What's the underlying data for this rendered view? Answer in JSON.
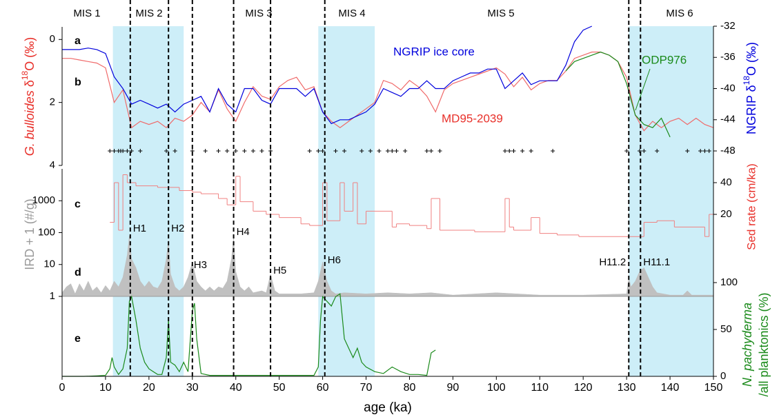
{
  "stages": [
    "MIS 1",
    "MIS 2",
    "MIS 3",
    "MIS 4",
    "MIS 5",
    "MIS 6"
  ],
  "shaded": [
    [
      11.7,
      28
    ],
    [
      59,
      72
    ],
    [
      130.5,
      150
    ]
  ],
  "events": [
    {
      "x": 15.7,
      "label": "H1"
    },
    {
      "x": 24.5,
      "label": "H2"
    },
    {
      "x": 30,
      "label": "H3"
    },
    {
      "x": 39.5,
      "label": "H4"
    },
    {
      "x": 48,
      "label": "H5"
    },
    {
      "x": 60.5,
      "label": "H6"
    },
    {
      "x": 130.5,
      "label": "H11.2"
    },
    {
      "x": 133.2,
      "label": "H11.1"
    }
  ],
  "chart_data": [
    {
      "type": "line",
      "panel_labels": [
        "a",
        "b"
      ],
      "xlim": [
        0,
        150
      ],
      "yaxis": "left",
      "yinvert": true,
      "ylim": [
        -0.4,
        4
      ],
      "yticks": [
        0,
        2,
        4
      ],
      "ylabel": [
        "G. bulloides",
        "δ",
        "18",
        "O (‰)"
      ],
      "y2lim": [
        -48,
        -32
      ],
      "y2ticks": [
        -32,
        -36,
        -40,
        -44,
        -48
      ],
      "y2label": [
        "NGRIP δ",
        "18",
        "O (‰)"
      ],
      "tie_points": [
        11,
        12,
        13,
        13.5,
        14,
        15,
        16,
        18,
        24,
        26,
        30,
        33,
        36,
        38,
        40,
        42,
        44,
        46,
        48,
        57,
        59,
        60,
        63,
        65,
        69,
        71,
        73,
        75,
        76,
        77,
        79,
        84,
        85,
        87,
        102,
        103,
        104,
        106,
        108,
        113,
        130,
        133,
        134,
        137,
        144,
        147,
        148,
        149
      ],
      "series": [
        {
          "name": "MD95-2039",
          "color": "#f06a6a",
          "x": [
            0,
            2,
            4,
            6,
            8,
            10,
            12,
            14,
            16,
            18,
            20,
            22,
            24,
            26,
            28,
            30,
            32,
            34,
            36,
            38,
            40,
            42,
            44,
            46,
            48,
            50,
            52,
            54,
            56,
            58,
            60,
            62,
            64,
            66,
            68,
            70,
            72,
            74,
            76,
            78,
            80,
            82,
            84,
            86,
            88,
            90,
            92,
            94,
            96,
            98,
            100,
            102,
            104,
            106,
            108,
            110,
            112,
            114,
            116,
            118,
            120,
            122,
            124,
            126,
            128,
            130,
            132,
            134,
            136,
            138,
            140,
            142,
            144,
            146,
            148,
            150
          ],
          "values": [
            0.6,
            0.6,
            0.65,
            0.7,
            0.75,
            0.9,
            2.0,
            1.6,
            2.8,
            2.6,
            2.7,
            2.6,
            2.8,
            2.5,
            2.6,
            2.4,
            2.0,
            2.3,
            1.6,
            2.2,
            2.6,
            2.0,
            1.5,
            1.8,
            1.9,
            1.5,
            1.3,
            1.2,
            1.6,
            1.5,
            2.3,
            2.6,
            2.8,
            2.6,
            2.4,
            2.2,
            2.0,
            1.3,
            1.4,
            1.6,
            1.3,
            1.5,
            1.8,
            2.3,
            1.6,
            1.4,
            1.3,
            1.2,
            1.1,
            1.0,
            0.9,
            1.1,
            1.5,
            1.2,
            1.6,
            1.4,
            1.3,
            1.3,
            1.0,
            0.6,
            0.5,
            0.4,
            0.4,
            0.5,
            0.7,
            1.2,
            2.4,
            2.9,
            2.6,
            2.8,
            2.6,
            2.5,
            2.7,
            2.5,
            2.7,
            2.8
          ]
        },
        {
          "name": "NGRIP ice core",
          "color": "#0000dd",
          "axis": "y2",
          "x": [
            0,
            2,
            4,
            6,
            8,
            10,
            12,
            14,
            16,
            18,
            20,
            22,
            24,
            26,
            28,
            30,
            32,
            34,
            36,
            38,
            40,
            42,
            44,
            46,
            48,
            50,
            52,
            54,
            56,
            58,
            60,
            62,
            64,
            66,
            68,
            70,
            72,
            74,
            76,
            78,
            80,
            82,
            84,
            86,
            88,
            90,
            92,
            94,
            96,
            98,
            100,
            102,
            104,
            106,
            108,
            110,
            112,
            114,
            116,
            118,
            120,
            122
          ],
          "values": [
            -35,
            -35,
            -35,
            -34.8,
            -35,
            -35.5,
            -38.5,
            -40,
            -42,
            -41.5,
            -42,
            -42.5,
            -42,
            -43,
            -42,
            -41.5,
            -41,
            -43,
            -40,
            -42,
            -43,
            -40,
            -40,
            -41.5,
            -42,
            -40,
            -40,
            -40,
            -41,
            -40,
            -43,
            -44.5,
            -44,
            -44,
            -43.5,
            -43,
            -42,
            -40,
            -40.5,
            -41,
            -40,
            -40,
            -39,
            -40,
            -40,
            -39,
            -38.5,
            -38,
            -38,
            -37.5,
            -37.5,
            -40,
            -39,
            -38,
            -39.5,
            -39,
            -39,
            -39,
            -37,
            -34,
            -32.5,
            -32
          ]
        },
        {
          "name": "ODP976",
          "color": "#1a8a1a",
          "x": [
            116,
            118,
            120,
            122,
            124,
            126,
            128,
            130,
            132,
            134,
            136,
            138,
            140
          ],
          "values": [
            1.0,
            0.7,
            0.6,
            0.5,
            0.4,
            0.5,
            0.7,
            1.4,
            2.4,
            2.7,
            2.8,
            2.5,
            3.1
          ]
        }
      ]
    },
    {
      "type": "step",
      "panel_labels": [
        "c"
      ],
      "xlim": [
        0,
        150
      ],
      "yaxis": "right",
      "ylim": [
        0,
        48
      ],
      "yticks": [
        20,
        40
      ],
      "ylabel": [
        "Sed rate (cm/ka)"
      ],
      "series": [
        {
          "color": "#f08080",
          "x": [
            11,
            12,
            13,
            14,
            15,
            17,
            22,
            27,
            30,
            32,
            36,
            38,
            40,
            41,
            44,
            47,
            50,
            55,
            57,
            60,
            61,
            64,
            65,
            67,
            68,
            70,
            76,
            77,
            80,
            84,
            85,
            87,
            95,
            102,
            103,
            104,
            108,
            110,
            114,
            119,
            134,
            137,
            141,
            148,
            149,
            150
          ],
          "values": [
            15,
            40,
            10,
            45,
            40,
            38,
            37,
            35,
            34,
            33,
            30,
            26,
            44,
            28,
            22,
            20,
            18,
            14,
            13,
            40,
            16,
            40,
            22,
            40,
            14,
            22,
            12,
            14,
            13,
            11,
            30,
            10,
            9,
            30,
            12,
            10,
            18,
            8,
            7,
            6,
            15,
            16,
            12,
            6,
            20,
            20
          ]
        }
      ]
    },
    {
      "type": "area",
      "panel_labels": [
        "d"
      ],
      "xlim": [
        0,
        150
      ],
      "yaxis": "left",
      "log": true,
      "ylim": [
        1,
        10000
      ],
      "yticks": [
        1,
        10,
        100,
        1000
      ],
      "ylabel": [
        "IRD + 1 (#/g)"
      ],
      "series": [
        {
          "color": "#c0c0c0",
          "x": [
            0,
            1,
            2,
            3,
            4,
            5,
            6,
            7,
            8,
            9,
            10,
            11,
            12,
            13,
            14,
            15,
            15.5,
            16,
            17,
            18,
            19,
            20,
            21,
            22,
            23,
            24,
            24.5,
            25,
            26,
            27,
            28,
            29,
            30,
            31,
            32,
            33,
            34,
            35,
            36,
            37,
            38,
            39,
            39.5,
            40,
            41,
            42,
            43,
            44,
            46,
            47,
            48,
            49,
            50,
            55,
            58,
            59,
            60,
            61,
            62,
            63,
            65,
            70,
            75,
            80,
            85,
            90,
            100,
            110,
            120,
            130,
            130.5,
            131,
            132,
            133,
            134,
            135,
            136,
            137,
            140,
            143,
            144,
            145,
            150
          ],
          "values": [
            1.3,
            2,
            2.5,
            1.2,
            2.5,
            1.5,
            3,
            1.5,
            2,
            1.3,
            2.2,
            1.5,
            3,
            2,
            4,
            20,
            80,
            15,
            8,
            3,
            2,
            3,
            2,
            1.8,
            3,
            15,
            60,
            5,
            2,
            1.5,
            2,
            4,
            12,
            3,
            2,
            1.5,
            2,
            1.5,
            2,
            1.8,
            3,
            15,
            70,
            6,
            2,
            1.5,
            2,
            1.3,
            1.5,
            1.3,
            5,
            1.5,
            1.2,
            1.2,
            1.3,
            3,
            12,
            3,
            1.5,
            1.2,
            1.3,
            1.2,
            1.3,
            1.2,
            1.3,
            1.1,
            1.3,
            1.1,
            1.1,
            1.2,
            4,
            2,
            3,
            6,
            8,
            4,
            2,
            1.3,
            1.1,
            1.1,
            1.5,
            1.1,
            1.1
          ]
        }
      ]
    },
    {
      "type": "line",
      "panel_labels": [
        "e"
      ],
      "xlim": [
        0,
        150
      ],
      "yaxis": "right",
      "ylim": [
        0,
        100
      ],
      "yticks": [
        0,
        50,
        100
      ],
      "ylabel": [
        "N. pachyderma",
        "/all planktonics (%)"
      ],
      "xticks": [
        0,
        10,
        20,
        30,
        40,
        50,
        60,
        70,
        80,
        90,
        100,
        110,
        120,
        130,
        140,
        150
      ],
      "xlabel": "age (ka)",
      "series": [
        {
          "color": "#1a8a1a",
          "x": [
            0,
            5,
            8,
            10,
            11,
            11.5,
            12,
            13,
            14,
            15,
            15.5,
            16,
            17,
            18,
            19,
            20,
            21,
            22,
            23,
            24,
            24.5,
            25,
            26,
            27,
            28,
            29,
            30,
            30.5,
            31,
            32,
            34,
            38,
            40,
            42,
            45,
            50,
            55,
            58,
            59,
            59.5,
            60,
            61,
            62,
            63,
            64,
            65,
            66,
            67,
            68,
            69,
            70,
            72,
            74,
            76,
            78,
            80,
            82,
            84,
            85,
            86
          ],
          "values": [
            0,
            0,
            0.5,
            1,
            8,
            20,
            10,
            2,
            8,
            30,
            80,
            85,
            60,
            30,
            15,
            8,
            5,
            2,
            2,
            20,
            60,
            15,
            12,
            5,
            15,
            5,
            70,
            78,
            40,
            3,
            1,
            1,
            1,
            1,
            1,
            1,
            1,
            1,
            10,
            60,
            85,
            80,
            75,
            85,
            88,
            40,
            30,
            20,
            30,
            15,
            10,
            5,
            3,
            10,
            5,
            2,
            2,
            1,
            25,
            28
          ]
        }
      ]
    }
  ]
}
